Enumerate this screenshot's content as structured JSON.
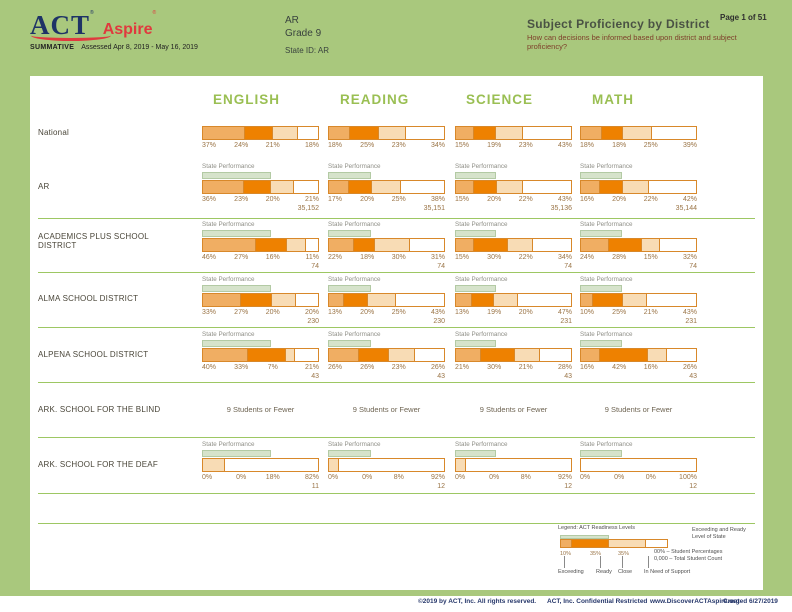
{
  "header": {
    "logo_act": "ACT",
    "logo_aspire": "Aspire",
    "registered_mark": "®",
    "program": "SUMMATIVE",
    "assessed": "Assessed Apr 8, 2019 - May 16, 2019",
    "region": "AR",
    "grade": "Grade 9",
    "state_id": "State ID: AR",
    "title": "Subject Proficiency by District",
    "subtitle": "How can decisions be informed based upon district and subject proficiency?",
    "page_number": "Page 1 of 51"
  },
  "report": {
    "columns": [
      "ENGLISH",
      "READING",
      "SCIENCE",
      "MATH"
    ],
    "state_performance_label": "State Performance",
    "state_band_pct": [
      59,
      37,
      35,
      36
    ],
    "suppressed_text": "9 Students or Fewer",
    "rows": [
      {
        "label": "National",
        "type": "bars",
        "state_performance": false,
        "cells": [
          {
            "segments": [
              37,
              24,
              21,
              18
            ]
          },
          {
            "segments": [
              18,
              25,
              23,
              34
            ]
          },
          {
            "segments": [
              15,
              19,
              23,
              43
            ]
          },
          {
            "segments": [
              18,
              18,
              25,
              39
            ]
          }
        ]
      },
      {
        "label": "AR",
        "type": "bars",
        "state_performance": true,
        "cells": [
          {
            "segments": [
              36,
              23,
              20,
              21
            ],
            "count": "35,152"
          },
          {
            "segments": [
              17,
              20,
              25,
              38
            ],
            "count": "35,151"
          },
          {
            "segments": [
              15,
              20,
              22,
              43
            ],
            "count": "35,136"
          },
          {
            "segments": [
              16,
              20,
              22,
              42
            ],
            "count": "35,144"
          }
        ]
      },
      {
        "label": "ACADEMICS PLUS SCHOOL DISTRICT",
        "type": "bars",
        "state_performance": true,
        "cells": [
          {
            "segments": [
              46,
              27,
              16,
              11
            ],
            "count": "74"
          },
          {
            "segments": [
              22,
              18,
              30,
              31
            ],
            "count": "74"
          },
          {
            "segments": [
              15,
              30,
              22,
              34
            ],
            "count": "74"
          },
          {
            "segments": [
              24,
              28,
              15,
              32
            ],
            "count": "74"
          }
        ]
      },
      {
        "label": "ALMA SCHOOL DISTRICT",
        "type": "bars",
        "state_performance": true,
        "cells": [
          {
            "segments": [
              33,
              27,
              20,
              20
            ],
            "count": "230"
          },
          {
            "segments": [
              13,
              20,
              25,
              43
            ],
            "count": "230"
          },
          {
            "segments": [
              13,
              19,
              20,
              47
            ],
            "count": "231"
          },
          {
            "segments": [
              10,
              25,
              21,
              43
            ],
            "count": "231"
          }
        ]
      },
      {
        "label": "ALPENA SCHOOL DISTRICT",
        "type": "bars",
        "state_performance": true,
        "cells": [
          {
            "segments": [
              40,
              33,
              7,
              21
            ],
            "count": "43"
          },
          {
            "segments": [
              26,
              26,
              23,
              26
            ],
            "count": "43"
          },
          {
            "segments": [
              21,
              30,
              21,
              28
            ],
            "count": "43"
          },
          {
            "segments": [
              16,
              42,
              16,
              26
            ],
            "count": "43"
          }
        ]
      },
      {
        "label": "ARK. SCHOOL FOR THE BLIND",
        "type": "text"
      },
      {
        "label": "ARK. SCHOOL FOR THE DEAF",
        "type": "bars",
        "state_performance": true,
        "cells": [
          {
            "segments": [
              0,
              0,
              18,
              82
            ],
            "count": "11"
          },
          {
            "segments": [
              0,
              0,
              8,
              92
            ],
            "count": "12"
          },
          {
            "segments": [
              0,
              0,
              8,
              92
            ],
            "count": "12"
          },
          {
            "segments": [
              0,
              0,
              0,
              100
            ],
            "count": "12"
          }
        ]
      }
    ]
  },
  "legend": {
    "title": "Legend: ACT Readiness Levels",
    "sample_segments": [
      10,
      35,
      35,
      20
    ],
    "sample_tick_labels": [
      "10%",
      "35%",
      "35%"
    ],
    "levels": [
      "Exceeding",
      "Ready",
      "Close",
      "In Need of Support"
    ],
    "student_percentages_note": "00% – Student Percentages",
    "total_student_count_note": "0,000 – Total Student Count",
    "state_band_note": "Exceeding and Ready Level of State"
  },
  "colors": {
    "exceeding": "#f0ae63",
    "ready": "#ee8100",
    "close": "#f8dcb5",
    "in_need_of_support": "#ffffff",
    "bar_border": "#d8882a",
    "state_band_fill": "#d6e3cb",
    "state_band_border": "#b3caa4",
    "column_header_green": "#9abf53",
    "divider_green": "#9dc763",
    "percent_text": "#9a7446"
  },
  "footer": {
    "copyright": "©2019 by ACT, Inc. All rights reserved.",
    "confidential": "ACT, Inc. Confidential Restricted",
    "website": "www.DiscoverACTAspire.org",
    "created": "Created 6/27/2019"
  }
}
